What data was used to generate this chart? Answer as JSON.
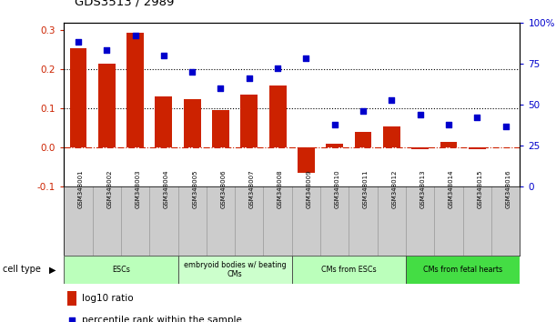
{
  "title": "GDS3513 / 2989",
  "samples": [
    "GSM348001",
    "GSM348002",
    "GSM348003",
    "GSM348004",
    "GSM348005",
    "GSM348006",
    "GSM348007",
    "GSM348008",
    "GSM348009",
    "GSM348010",
    "GSM348011",
    "GSM348012",
    "GSM348013",
    "GSM348014",
    "GSM348015",
    "GSM348016"
  ],
  "log10_ratio": [
    0.255,
    0.215,
    0.295,
    0.13,
    0.125,
    0.095,
    0.135,
    0.16,
    -0.065,
    0.01,
    0.04,
    0.055,
    -0.005,
    0.015,
    -0.005,
    0.0
  ],
  "percentile_rank": [
    88,
    83,
    92,
    80,
    70,
    60,
    66,
    72,
    78,
    38,
    46,
    53,
    44,
    38,
    42,
    37
  ],
  "bar_color": "#cc2200",
  "dot_color": "#0000cc",
  "ylim_left": [
    -0.1,
    0.32
  ],
  "ylim_right": [
    0,
    100
  ],
  "yticks_left": [
    -0.1,
    0.0,
    0.1,
    0.2,
    0.3
  ],
  "yticks_right": [
    0,
    25,
    50,
    75,
    100
  ],
  "ytick_labels_right": [
    "0",
    "25",
    "50",
    "75",
    "100%"
  ],
  "cell_types": [
    {
      "label": "ESCs",
      "start": 0,
      "end": 3,
      "color": "#bbffbb"
    },
    {
      "label": "embryoid bodies w/ beating\nCMs",
      "start": 4,
      "end": 7,
      "color": "#ccffcc"
    },
    {
      "label": "CMs from ESCs",
      "start": 8,
      "end": 11,
      "color": "#bbffbb"
    },
    {
      "label": "CMs from fetal hearts",
      "start": 12,
      "end": 15,
      "color": "#44dd44"
    }
  ],
  "legend_bar_label": "log10 ratio",
  "legend_dot_label": "percentile rank within the sample",
  "background_color": "#ffffff",
  "plot_bg": "#ffffff",
  "zero_line_color": "#cc2200",
  "dotted_line_color": "#000000",
  "sample_bg_color": "#cccccc",
  "ct_border_color": "#444444"
}
